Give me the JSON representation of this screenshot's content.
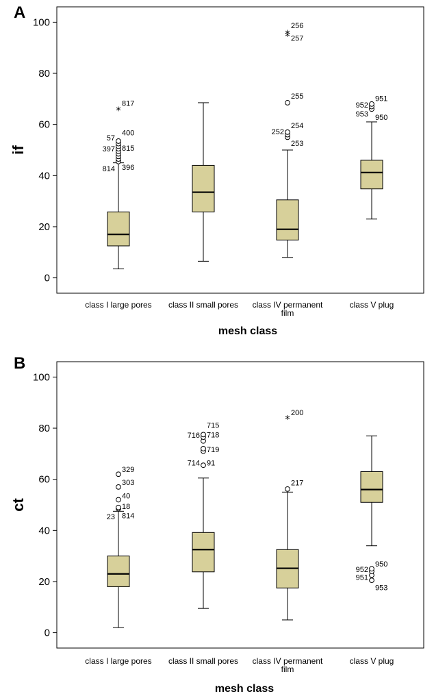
{
  "chart_data": [
    {
      "panel": "A",
      "type": "box",
      "xlabel": "mesh class",
      "ylabel": "if",
      "ylim": [
        -6,
        106
      ],
      "yticks": [
        "0",
        "20",
        "40",
        "60",
        "80",
        "100"
      ],
      "box_color": "#d7d09a",
      "categories": [
        {
          "label_lines": [
            "class I large pores"
          ],
          "whisker_low": 3.5,
          "q1": 12.5,
          "median": 17,
          "q3": 25.8,
          "whisker_high": 45,
          "outliers": [
            {
              "y": 45.5,
              "symbol": "circle"
            },
            {
              "y": 46.5,
              "symbol": "circle"
            },
            {
              "y": 47.5,
              "symbol": "circle"
            },
            {
              "y": 48.5,
              "symbol": "circle"
            },
            {
              "y": 49.5,
              "symbol": "circle"
            },
            {
              "y": 50.5,
              "symbol": "circle"
            },
            {
              "y": 51.5,
              "symbol": "circle"
            },
            {
              "y": 52.5,
              "symbol": "circle"
            },
            {
              "y": 53.5,
              "symbol": "circle"
            },
            {
              "y": 66,
              "symbol": "star"
            }
          ],
          "outlier_labels": [
            {
              "text": "817",
              "y": 68.3,
              "side": "right"
            },
            {
              "text": "400",
              "y": 56.8,
              "side": "right"
            },
            {
              "text": "57",
              "y": 54.8,
              "side": "left"
            },
            {
              "text": "397",
              "y": 50.5,
              "side": "left"
            },
            {
              "text": "815",
              "y": 50.8,
              "side": "right"
            },
            {
              "text": "814",
              "y": 42.8,
              "side": "left"
            },
            {
              "text": "396",
              "y": 43.3,
              "side": "right"
            }
          ]
        },
        {
          "label_lines": [
            "class II small pores"
          ],
          "whisker_low": 6.5,
          "q1": 25.8,
          "median": 33.5,
          "q3": 44,
          "whisker_high": 68.5,
          "outliers": [],
          "outlier_labels": []
        },
        {
          "label_lines": [
            "class IV permanent",
            "film"
          ],
          "whisker_low": 8,
          "q1": 14.8,
          "median": 19,
          "q3": 30.5,
          "whisker_high": 50,
          "outliers": [
            {
              "y": 55,
              "symbol": "circle"
            },
            {
              "y": 56,
              "symbol": "circle"
            },
            {
              "y": 57,
              "symbol": "circle"
            },
            {
              "y": 68.5,
              "symbol": "circle"
            },
            {
              "y": 95,
              "symbol": "star"
            },
            {
              "y": 96,
              "symbol": "star"
            }
          ],
          "outlier_labels": [
            {
              "text": "256",
              "y": 98.7,
              "side": "right"
            },
            {
              "text": "257",
              "y": 93.8,
              "side": "right"
            },
            {
              "text": "255",
              "y": 71.2,
              "side": "right"
            },
            {
              "text": "254",
              "y": 59.7,
              "side": "right"
            },
            {
              "text": "252",
              "y": 57.3,
              "side": "left"
            },
            {
              "text": "253",
              "y": 52.7,
              "side": "right"
            }
          ]
        },
        {
          "label_lines": [
            "class V plug"
          ],
          "whisker_low": 23,
          "q1": 34.8,
          "median": 41.2,
          "q3": 46,
          "whisker_high": 61,
          "outliers": [
            {
              "y": 66,
              "symbol": "circle"
            },
            {
              "y": 67,
              "symbol": "circle"
            },
            {
              "y": 68,
              "symbol": "circle"
            }
          ],
          "outlier_labels": [
            {
              "text": "951",
              "y": 70.2,
              "side": "right"
            },
            {
              "text": "952",
              "y": 67.7,
              "side": "left"
            },
            {
              "text": "953",
              "y": 64.2,
              "side": "left"
            },
            {
              "text": "950",
              "y": 62.8,
              "side": "right"
            }
          ]
        }
      ]
    },
    {
      "panel": "B",
      "type": "box",
      "xlabel": "mesh class",
      "ylabel": "ct",
      "ylim": [
        -6,
        106
      ],
      "yticks": [
        "0",
        "20",
        "40",
        "60",
        "80",
        "100"
      ],
      "box_color": "#d7d09a",
      "categories": [
        {
          "label_lines": [
            "class I large pores"
          ],
          "whisker_low": 2,
          "q1": 18,
          "median": 23,
          "q3": 30,
          "whisker_high": 47.5,
          "outliers": [
            {
              "y": 48.5,
              "symbol": "circle"
            },
            {
              "y": 49,
              "symbol": "circle"
            },
            {
              "y": 52,
              "symbol": "circle"
            },
            {
              "y": 57,
              "symbol": "circle"
            },
            {
              "y": 62,
              "symbol": "circle"
            }
          ],
          "outlier_labels": [
            {
              "text": "329",
              "y": 63.9,
              "side": "right"
            },
            {
              "text": "303",
              "y": 58.8,
              "side": "right"
            },
            {
              "text": "40",
              "y": 53.6,
              "side": "right"
            },
            {
              "text": "18",
              "y": 49.5,
              "side": "right"
            },
            {
              "text": "23",
              "y": 45.4,
              "side": "left"
            },
            {
              "text": "814",
              "y": 45.9,
              "side": "right"
            }
          ]
        },
        {
          "label_lines": [
            "class II small pores"
          ],
          "whisker_low": 9.5,
          "q1": 23.8,
          "median": 32.5,
          "q3": 39.2,
          "whisker_high": 60.5,
          "outliers": [
            {
              "y": 65.5,
              "symbol": "circle"
            },
            {
              "y": 71,
              "symbol": "circle"
            },
            {
              "y": 72,
              "symbol": "circle"
            },
            {
              "y": 75,
              "symbol": "circle"
            },
            {
              "y": 76.5,
              "symbol": "circle"
            },
            {
              "y": 77.5,
              "symbol": "circle"
            }
          ],
          "outlier_labels": [
            {
              "text": "715",
              "y": 81.2,
              "side": "right"
            },
            {
              "text": "716",
              "y": 77.3,
              "side": "left"
            },
            {
              "text": "718",
              "y": 77.5,
              "side": "right"
            },
            {
              "text": "719",
              "y": 71.7,
              "side": "right"
            },
            {
              "text": "714",
              "y": 66.5,
              "side": "left"
            },
            {
              "text": "91",
              "y": 66.5,
              "side": "right"
            }
          ]
        },
        {
          "label_lines": [
            "class IV permanent",
            "film"
          ],
          "whisker_low": 5,
          "q1": 17.5,
          "median": 25.2,
          "q3": 32.5,
          "whisker_high": 55,
          "outliers": [
            {
              "y": 56.2,
              "symbol": "circle"
            },
            {
              "y": 84,
              "symbol": "star"
            }
          ],
          "outlier_labels": [
            {
              "text": "200",
              "y": 86.2,
              "side": "right"
            },
            {
              "text": "217",
              "y": 58.7,
              "side": "right"
            }
          ]
        },
        {
          "label_lines": [
            "class V plug"
          ],
          "whisker_low": 34,
          "q1": 51,
          "median": 56,
          "q3": 63,
          "whisker_high": 77,
          "outliers": [
            {
              "y": 20.5,
              "symbol": "circle"
            },
            {
              "y": 22.5,
              "symbol": "circle"
            },
            {
              "y": 24,
              "symbol": "circle"
            },
            {
              "y": 25,
              "symbol": "circle"
            }
          ],
          "outlier_labels": [
            {
              "text": "950",
              "y": 27,
              "side": "right"
            },
            {
              "text": "952",
              "y": 24.8,
              "side": "left"
            },
            {
              "text": "951",
              "y": 21.7,
              "side": "left"
            },
            {
              "text": "953",
              "y": 17.7,
              "side": "right"
            }
          ]
        }
      ]
    }
  ]
}
